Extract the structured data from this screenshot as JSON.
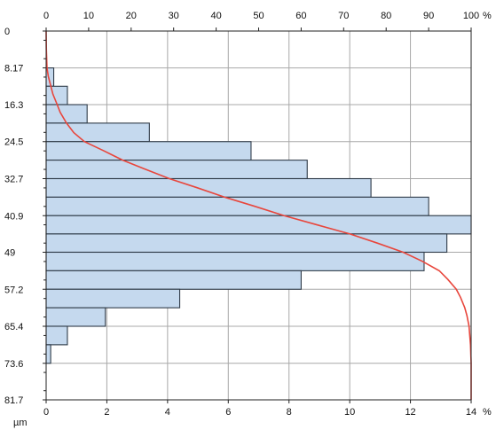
{
  "chart_data": {
    "type": "bar",
    "orientation": "horizontal",
    "title": "",
    "bottom_axis": {
      "ticks": [
        "0",
        "2",
        "4",
        "6",
        "8",
        "10",
        "12",
        "14"
      ],
      "range": [
        0,
        14
      ],
      "unit": "%"
    },
    "top_axis": {
      "ticks": [
        "0",
        "10",
        "20",
        "30",
        "40",
        "50",
        "60",
        "70",
        "80",
        "90",
        "100"
      ],
      "range": [
        0,
        100
      ],
      "unit": "%"
    },
    "left_axis": {
      "ticks": [
        "0",
        "8.17",
        "16.3",
        "24.5",
        "32.7",
        "40.9",
        "49",
        "57.2",
        "65.4",
        "73.6",
        "81.7"
      ],
      "range": [
        0,
        81.7
      ],
      "unit": "µm"
    },
    "bin_edges": [
      0,
      4.085,
      8.17,
      12.235,
      16.3,
      20.4,
      24.5,
      28.6,
      32.7,
      36.8,
      40.9,
      44.95,
      49,
      53.1,
      57.2,
      61.3,
      65.4,
      69.5,
      73.6,
      77.65,
      81.7
    ],
    "bar_values": [
      0,
      0,
      0.25,
      0.7,
      1.35,
      3.4,
      6.75,
      8.6,
      10.7,
      12.6,
      14.0,
      13.2,
      12.45,
      8.4,
      4.4,
      1.95,
      0.7,
      0.15,
      0,
      0
    ],
    "series": [
      {
        "type": "bar",
        "values_ref": "bar_values",
        "axis": "bottom"
      },
      {
        "type": "line",
        "axis": "top",
        "points": [
          [
            0,
            0
          ],
          [
            4,
            0.05
          ],
          [
            8.17,
            0.2
          ],
          [
            10,
            0.5
          ],
          [
            12.2,
            1.1
          ],
          [
            14,
            1.6
          ],
          [
            16.3,
            2.6
          ],
          [
            18,
            3.3
          ],
          [
            20.4,
            4.8
          ],
          [
            22.5,
            6.5
          ],
          [
            24.5,
            9.0
          ],
          [
            26.5,
            13.5
          ],
          [
            28.6,
            18.0
          ],
          [
            30.5,
            23.0
          ],
          [
            32.7,
            29.0
          ],
          [
            34.7,
            35.5
          ],
          [
            36.8,
            42.0
          ],
          [
            38.8,
            49.0
          ],
          [
            40.9,
            56.0
          ],
          [
            43,
            64.0
          ],
          [
            44.95,
            71.5
          ],
          [
            47,
            78.0
          ],
          [
            49,
            84.0
          ],
          [
            51,
            88.5
          ],
          [
            53.1,
            92.5
          ],
          [
            55,
            94.5
          ],
          [
            57.2,
            96.5
          ],
          [
            59,
            97.5
          ],
          [
            61.3,
            98.5
          ],
          [
            63,
            99.0
          ],
          [
            65.4,
            99.5
          ],
          [
            69.5,
            99.85
          ],
          [
            73.6,
            100
          ],
          [
            77.65,
            100
          ],
          [
            81.7,
            100
          ]
        ]
      }
    ],
    "colors": {
      "bar_fill": "#c5d9ee",
      "bar_stroke": "#2f3b48",
      "line": "#e8463c",
      "grid": "#a8a8a8",
      "axis": "#222222"
    },
    "grid": true
  }
}
